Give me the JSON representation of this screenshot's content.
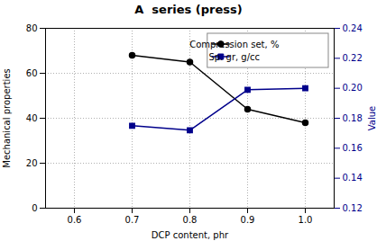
{
  "chart_data": {
    "type": "line",
    "title": "A  series (press)",
    "xlabel": "DCP content, phr",
    "ylabel": "Mechanical properties",
    "y2label": "Value",
    "x": [
      0.7,
      0.8,
      0.9,
      1.0
    ],
    "series": [
      {
        "name": "Compression set, %",
        "color": "#000000",
        "marker": "circle",
        "values": [
          68,
          65,
          44,
          38
        ]
      },
      {
        "name": "Sp. gr, g/cc",
        "color": "#00008B",
        "marker": "square",
        "axis": "y2",
        "values": [
          0.175,
          0.172,
          0.199,
          0.2
        ]
      }
    ],
    "xlim": [
      0.55,
      1.05
    ],
    "xticks": [
      0.6,
      0.7,
      0.8,
      0.9,
      {
        "value": 1.0,
        "label": "1.0"
      }
    ],
    "ylim": [
      0,
      80
    ],
    "yticks": [
      0,
      20,
      40,
      60,
      80
    ],
    "y2lim": [
      0.12,
      0.24
    ],
    "y2ticks": [
      0.12,
      0.14,
      0.16,
      0.18,
      {
        "value": 0.2,
        "label": "0.20"
      },
      0.22,
      0.24
    ],
    "grid": true,
    "legend": "upper right"
  }
}
